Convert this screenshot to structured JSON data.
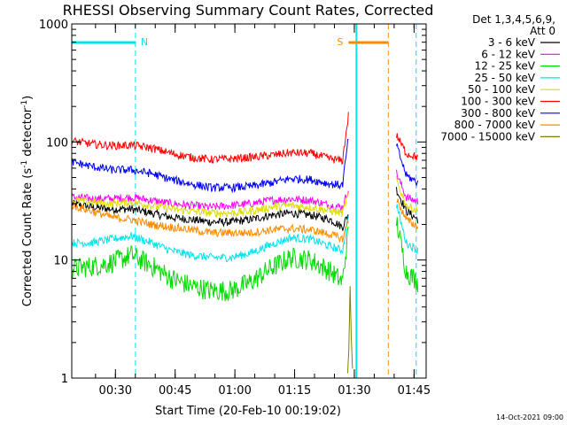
{
  "chart_data": {
    "type": "line",
    "title": "RHESSI Observing Summary Count Rates, Corrected",
    "xlabel": "Start Time (20-Feb-10 00:19:02)",
    "ylabel_main": "Corrected Count Rate (s",
    "ylabel_sup1": "-1",
    "ylabel_mid": " detector",
    "ylabel_sup2": "-1",
    "ylabel_end": ")",
    "yscale": "log",
    "ylim": [
      1,
      1000
    ],
    "xlim_minutes_after_start": [
      0,
      89
    ],
    "x_ticks": [
      "00:30",
      "00:45",
      "01:00",
      "01:15",
      "01:30",
      "01:45"
    ],
    "y_ticks": [
      "1",
      "10",
      "100",
      "1000"
    ],
    "grid": false,
    "legend_position": "right",
    "legend_header": [
      "Det 1,3,4,5,6,9,",
      "Att 0"
    ],
    "footer_timestamp": "14-Oct-2021 09:00",
    "flags": [
      {
        "label": "N",
        "color": "#00e5ee",
        "from_minutes": 0,
        "to_minutes": 16
      },
      {
        "label": "S",
        "color": "#ff8c00",
        "from_minutes": 69.5,
        "to_minutes": 79.5
      }
    ],
    "vertical_markers": [
      {
        "minutes": 16,
        "color": "#00e5ee",
        "style": "dashed"
      },
      {
        "minutes": 71.5,
        "color": "#00e5ee",
        "style": "solid"
      },
      {
        "minutes": 79.5,
        "color": "#ff8c00",
        "style": "dashed"
      },
      {
        "minutes": 86.5,
        "color": "#00e5ee",
        "style": "dashed"
      }
    ],
    "series": [
      {
        "name": "3 - 6 keV",
        "color": "#000000",
        "x": [
          0,
          5,
          10,
          15,
          20,
          25,
          30,
          35,
          40,
          45,
          50,
          55,
          60,
          65,
          68,
          69.5,
          70.5,
          79.5,
          81.5,
          84,
          87
        ],
        "y": [
          30,
          28,
          27,
          27,
          25,
          23,
          22,
          21,
          21,
          22,
          24,
          25,
          24,
          22,
          19,
          25,
          null,
          null,
          40,
          26,
          22
        ]
      },
      {
        "name": "6 - 12 keV",
        "color": "#ff00ff",
        "x": [
          0,
          5,
          10,
          15,
          20,
          25,
          30,
          35,
          40,
          45,
          50,
          55,
          60,
          65,
          68,
          69.5,
          70.5,
          79.5,
          81.5,
          84,
          87
        ],
        "y": [
          34,
          33,
          33,
          34,
          32,
          30,
          29,
          28,
          29,
          30,
          32,
          33,
          32,
          29,
          28,
          40,
          null,
          null,
          55,
          34,
          31
        ]
      },
      {
        "name": "12 - 25 keV",
        "color": "#00dd00",
        "x": [
          0,
          5,
          10,
          15,
          20,
          25,
          30,
          35,
          40,
          45,
          50,
          55,
          60,
          65,
          68,
          69.5,
          70.5,
          79.5,
          81.5,
          84,
          87
        ],
        "y": [
          8.5,
          8.8,
          9.5,
          11,
          9,
          7,
          6,
          5.5,
          5.5,
          6.5,
          8.5,
          10.5,
          10,
          8,
          6.5,
          18,
          null,
          null,
          22,
          8,
          6.5
        ]
      },
      {
        "name": "25 - 50 keV",
        "color": "#00e5ee",
        "x": [
          0,
          5,
          10,
          15,
          20,
          25,
          30,
          35,
          40,
          45,
          50,
          55,
          60,
          65,
          68,
          69.5,
          70.5,
          79.5,
          81.5,
          84,
          87
        ],
        "y": [
          14,
          14,
          15,
          16,
          14,
          12,
          11,
          10.5,
          10.5,
          11.5,
          13.5,
          15.5,
          15,
          13,
          12,
          24,
          null,
          null,
          30,
          14,
          12
        ]
      },
      {
        "name": "50 - 100 keV",
        "color": "#dddd00",
        "x": [
          0,
          5,
          10,
          15,
          20,
          25,
          30,
          35,
          40,
          45,
          50,
          55,
          60,
          65,
          68,
          69.5,
          70.5,
          79.5,
          81.5,
          84,
          87
        ],
        "y": [
          32,
          31,
          30,
          31,
          29,
          27,
          26,
          25,
          25,
          26,
          28,
          29,
          28,
          26,
          25,
          36,
          null,
          null,
          48,
          29,
          26
        ]
      },
      {
        "name": "100 - 300 keV",
        "color": "#ff0000",
        "x": [
          0,
          5,
          10,
          15,
          20,
          25,
          30,
          35,
          40,
          45,
          50,
          55,
          60,
          65,
          68,
          69.5,
          70.5,
          79.5,
          81.5,
          84,
          87
        ],
        "y": [
          102,
          96,
          93,
          94,
          89,
          80,
          74,
          71,
          72,
          74,
          77,
          81,
          80,
          72,
          69,
          170,
          null,
          null,
          115,
          80,
          74
        ]
      },
      {
        "name": "300 - 800 keV",
        "color": "#0000ff",
        "x": [
          0,
          5,
          10,
          15,
          20,
          25,
          30,
          35,
          40,
          45,
          50,
          55,
          60,
          65,
          68,
          69.5,
          70.5,
          79.5,
          81.5,
          84,
          87
        ],
        "y": [
          68,
          62,
          58,
          58,
          54,
          48,
          44,
          41,
          41,
          42,
          45,
          49,
          48,
          44,
          43,
          110,
          null,
          null,
          95,
          52,
          45
        ]
      },
      {
        "name": "800 - 7000 keV",
        "color": "#ff8c00",
        "x": [
          0,
          5,
          10,
          15,
          20,
          25,
          30,
          35,
          40,
          45,
          50,
          55,
          60,
          65,
          68,
          69.5,
          70.5,
          79.5,
          81.5,
          84,
          87
        ],
        "y": [
          29,
          26,
          23,
          22,
          20,
          19,
          18,
          17,
          17,
          17,
          18,
          18.5,
          18,
          16.5,
          15,
          22,
          null,
          null,
          33,
          22,
          19
        ]
      },
      {
        "name": "7000 - 15000 keV",
        "color": "#808000",
        "x": [
          69.3,
          69.6,
          69.9,
          70.2,
          70.5
        ],
        "y": [
          1.1,
          1.8,
          6.0,
          2.2,
          1.2
        ]
      }
    ]
  }
}
